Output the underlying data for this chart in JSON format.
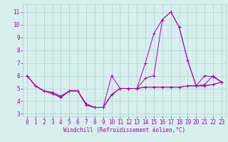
{
  "xlabel": "Windchill (Refroidissement éolien,°C)",
  "background_color": "#d7f0ee",
  "grid_color": "#aecece",
  "line_color": "#aa00aa",
  "xlim": [
    -0.5,
    23.5
  ],
  "ylim": [
    2.8,
    11.6
  ],
  "yticks": [
    3,
    4,
    5,
    6,
    7,
    8,
    9,
    10,
    11
  ],
  "xticks": [
    0,
    1,
    2,
    3,
    4,
    5,
    6,
    7,
    8,
    9,
    10,
    11,
    12,
    13,
    14,
    15,
    16,
    17,
    18,
    19,
    20,
    21,
    22,
    23
  ],
  "lines": [
    [
      6.0,
      5.2,
      4.8,
      4.6,
      4.3,
      4.8,
      4.8,
      3.7,
      3.5,
      3.5,
      4.5,
      5.0,
      5.0,
      5.0,
      5.1,
      5.1,
      5.1,
      5.1,
      5.1,
      5.2,
      5.2,
      6.0,
      5.9,
      5.5
    ],
    [
      6.0,
      5.2,
      4.8,
      4.6,
      4.3,
      4.8,
      4.8,
      3.7,
      3.5,
      3.5,
      4.5,
      5.0,
      5.0,
      5.0,
      7.0,
      9.3,
      10.4,
      11.0,
      9.8,
      7.2,
      5.2,
      5.2,
      5.3,
      5.5
    ],
    [
      6.0,
      5.2,
      4.8,
      4.7,
      4.4,
      4.8,
      4.8,
      3.8,
      3.5,
      3.5,
      4.5,
      5.0,
      5.0,
      5.0,
      5.8,
      6.0,
      10.4,
      11.0,
      9.8,
      7.2,
      5.2,
      5.3,
      6.0,
      5.5
    ],
    [
      6.0,
      5.2,
      4.8,
      4.6,
      4.3,
      4.8,
      4.8,
      3.7,
      3.5,
      3.5,
      6.0,
      5.0,
      5.0,
      5.0,
      5.1,
      5.1,
      5.1,
      5.1,
      5.1,
      5.2,
      5.2,
      5.2,
      5.3,
      5.5
    ]
  ],
  "xlabel_fontsize": 5.5,
  "tick_fontsize": 5.5,
  "linewidth": 0.7,
  "marker_size": 2.5
}
